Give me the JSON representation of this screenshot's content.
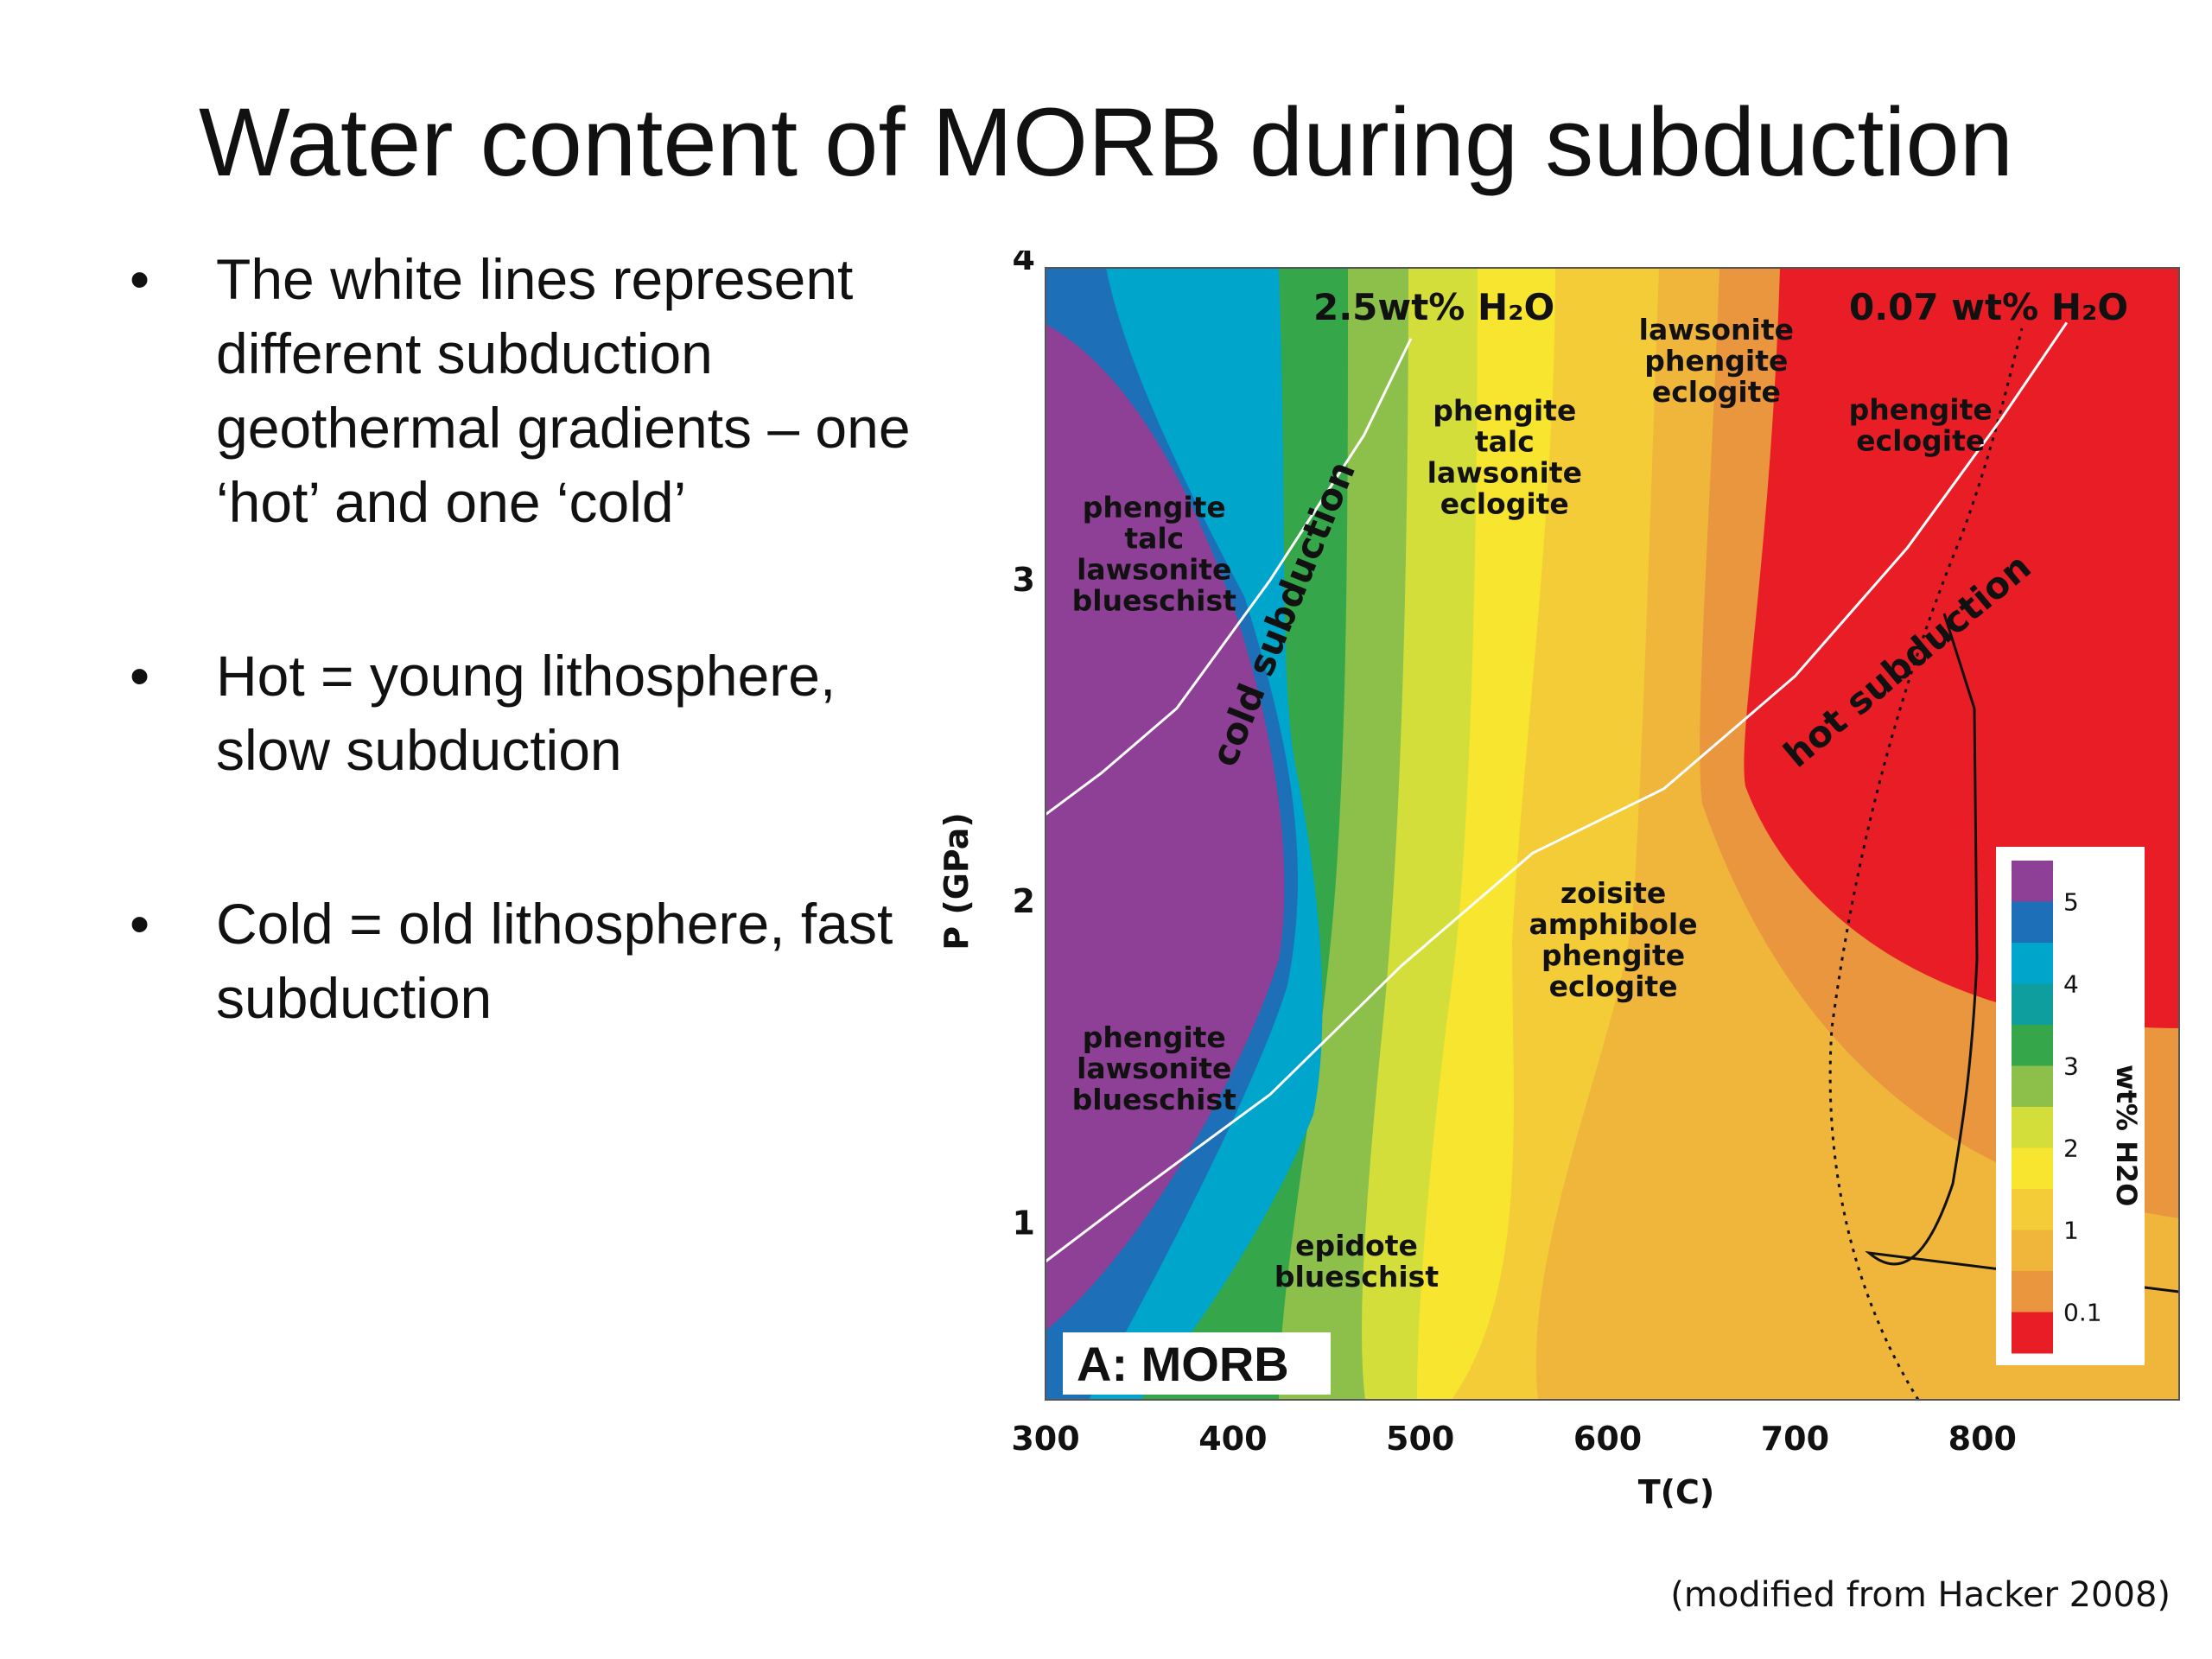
{
  "title": "Water content of MORB during subduction",
  "bullets": [
    {
      "marker": "•",
      "text": "The white lines represent different subduction geothermal gradients – one ‘hot’ and one ‘cold’"
    },
    {
      "marker": "•",
      "text": "Hot = young lithosphere, slow subduction"
    },
    {
      "marker": "•",
      "text": "Cold = old lithosphere, fast subduction"
    }
  ],
  "credit": "(modified from Hacker 2008)",
  "chart_data": {
    "type": "heatmap",
    "panel_label": "A: MORB",
    "xlabel": "T(C)",
    "ylabel": "P (GPa)",
    "xlim": [
      300,
      905
    ],
    "ylim": [
      0.45,
      3.97
    ],
    "x_ticks": [
      300,
      400,
      500,
      600,
      700,
      800
    ],
    "y_ticks": [
      1,
      2,
      3,
      4
    ],
    "colorbar": {
      "label": "wt% H2O",
      "tick_labels": [
        "5",
        "4",
        "3",
        "2",
        "1",
        "0.1"
      ],
      "colors": [
        "#8e3f96",
        "#1d6fb7",
        "#00a5cc",
        "#0e9e9e",
        "#36a64a",
        "#8cc04a",
        "#d4de3a",
        "#f7e530",
        "#f4cc38",
        "#f0b63c",
        "#e9963e",
        "#e91d26"
      ]
    },
    "annotations": {
      "low_contour": "2.5wt% H₂O",
      "high_contour": "0.07 wt% H₂O",
      "cold_path": "cold subduction",
      "hot_path": "hot subduction"
    },
    "cold_geotherm": [
      [
        300,
        2.27
      ],
      [
        330,
        2.4
      ],
      [
        370,
        2.6
      ],
      [
        420,
        3.0
      ],
      [
        470,
        3.45
      ],
      [
        495,
        3.75
      ]
    ],
    "hot_geotherm": [
      [
        300,
        0.88
      ],
      [
        350,
        1.1
      ],
      [
        420,
        1.4
      ],
      [
        490,
        1.8
      ],
      [
        560,
        2.15
      ],
      [
        630,
        2.35
      ],
      [
        700,
        2.7
      ],
      [
        760,
        3.1
      ],
      [
        810,
        3.5
      ],
      [
        845,
        3.8
      ]
    ],
    "phase_fields": [
      {
        "text": [
          "phengite",
          "talc",
          "lawsonite",
          "blueschist"
        ],
        "t": 358,
        "p": 3.05
      },
      {
        "text": [
          "phengite",
          "lawsonite",
          "blueschist"
        ],
        "t": 358,
        "p": 1.45
      },
      {
        "text": [
          "epidote",
          "blueschist"
        ],
        "t": 466,
        "p": 0.85
      },
      {
        "text": [
          "phengite",
          "talc",
          "lawsonite",
          "eclogite"
        ],
        "t": 545,
        "p": 3.35
      },
      {
        "text": [
          "lawsonite",
          "phengite",
          "eclogite"
        ],
        "t": 658,
        "p": 3.65
      },
      {
        "text": [
          "phengite",
          "eclogite"
        ],
        "t": 767,
        "p": 3.45
      },
      {
        "text": [
          "zoisite",
          "amphibole",
          "phengite",
          "eclogite"
        ],
        "t": 603,
        "p": 1.85
      }
    ]
  }
}
